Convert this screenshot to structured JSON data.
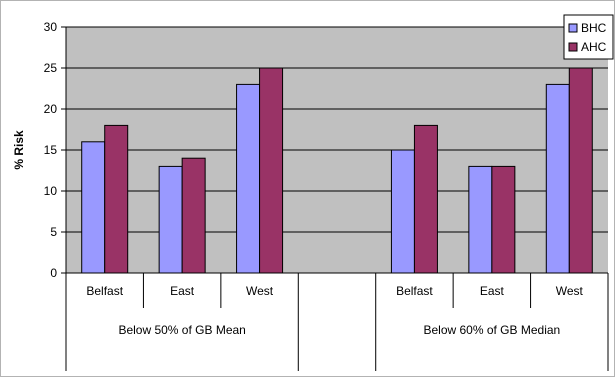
{
  "chart_data": {
    "type": "bar",
    "title": "",
    "xlabel": "",
    "ylabel": "% Risk",
    "ylim": [
      0,
      30
    ],
    "yticks": [
      0,
      5,
      10,
      15,
      20,
      25,
      30
    ],
    "grid": true,
    "legend_position": "top-right",
    "groups": [
      {
        "label": "Below 50% of GB Mean",
        "categories": [
          "Belfast",
          "East",
          "West"
        ]
      },
      {
        "label": "Below 60% of GB Median",
        "categories": [
          "Belfast",
          "East",
          "West"
        ]
      }
    ],
    "categories": [
      "Belfast",
      "East",
      "West",
      "",
      "Belfast",
      "East",
      "West"
    ],
    "series": [
      {
        "name": "BHC",
        "color": "#9999ff",
        "values": [
          16,
          13,
          23,
          null,
          15,
          13,
          23
        ]
      },
      {
        "name": "AHC",
        "color": "#993366",
        "values": [
          18,
          14,
          25,
          null,
          18,
          13,
          25
        ]
      }
    ],
    "plot_background": "#c0c0c0"
  }
}
